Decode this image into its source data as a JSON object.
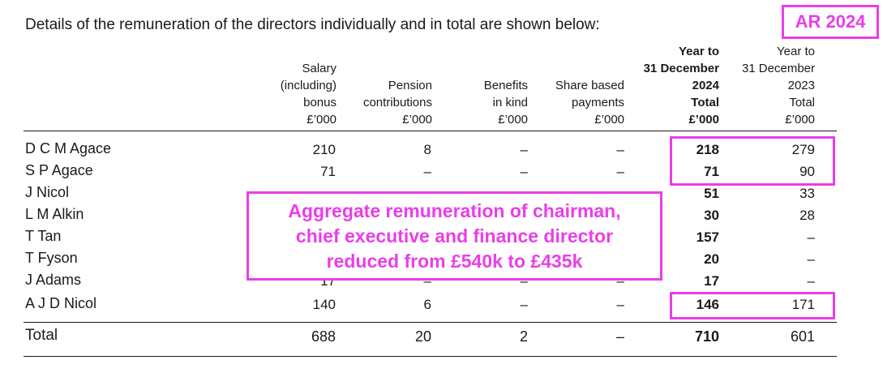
{
  "intro": "Details of the remuneration of the directors individually and in total are shown below:",
  "badge": "AR 2024",
  "accent_color": "#e93ee9",
  "columns": [
    {
      "label": "Salary\n(including)\nbonus\n£’000",
      "bold": false
    },
    {
      "label": "Pension\ncontributions\n£’000",
      "bold": false
    },
    {
      "label": "Benefits\nin kind\n£’000",
      "bold": false
    },
    {
      "label": "Share based\npayments\n£’000",
      "bold": false
    },
    {
      "label": "Year to\n31 December\n2024\nTotal\n£’000",
      "bold": true
    },
    {
      "label": "Year to\n31 December\n2023\nTotal\n£’000",
      "bold": false
    }
  ],
  "rows": [
    {
      "name": "D C M Agace",
      "values": [
        "210",
        "8",
        "–",
        "–",
        "218",
        "279"
      ]
    },
    {
      "name": "S P Agace",
      "values": [
        "71",
        "–",
        "–",
        "–",
        "71",
        "90"
      ]
    },
    {
      "name": "J Nicol",
      "values": [
        "",
        "",
        "",
        "",
        "51",
        "33"
      ]
    },
    {
      "name": "L M Alkin",
      "values": [
        "",
        "",
        "",
        "",
        "30",
        "28"
      ]
    },
    {
      "name": "T Tan",
      "values": [
        "",
        "",
        "",
        "",
        "157",
        "–"
      ]
    },
    {
      "name": "T Fyson",
      "values": [
        "",
        "",
        "",
        "",
        "20",
        "–"
      ]
    },
    {
      "name": "J Adams",
      "values": [
        "17",
        "–",
        "–",
        "–",
        "17",
        "–"
      ]
    },
    {
      "name": "A J D Nicol",
      "values": [
        "140",
        "6",
        "–",
        "–",
        "146",
        "171"
      ]
    }
  ],
  "total": {
    "label": "Total",
    "values": [
      "688",
      "20",
      "2",
      "–",
      "710",
      "601"
    ]
  },
  "callout": "Aggregate remuneration of chairman,\nchief executive and finance director\nreduced from £540k to £435k"
}
